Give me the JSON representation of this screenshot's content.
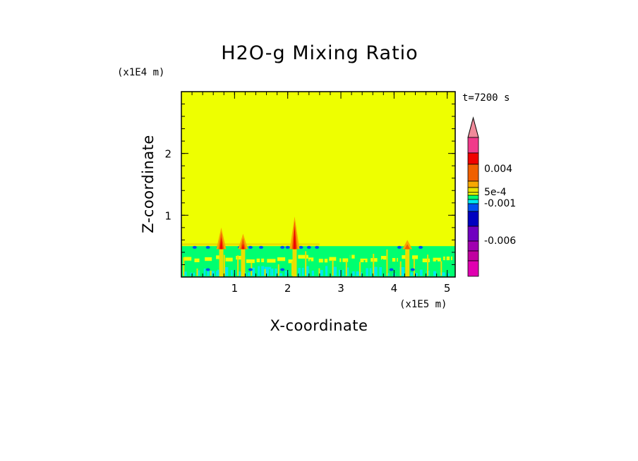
{
  "chart_data": {
    "type": "heatmap",
    "title": "H2O-g Mixing Ratio",
    "xlabel": "X-coordinate",
    "ylabel": "Z-coordinate",
    "x_scale_label": "(x1E5 m)",
    "y_scale_label": "(x1E4 m)",
    "time_label": "t=7200 s",
    "xlim": [
      0,
      5.15
    ],
    "ylim": [
      0,
      3.0
    ],
    "x_ticks": [
      "1",
      "2",
      "3",
      "4",
      "5"
    ],
    "y_ticks": [
      "1",
      "2"
    ],
    "background_level_color": "#eeff00",
    "colorbar": {
      "levels": [
        {
          "color": "#f03a8a"
        },
        {
          "color": "#f00000"
        },
        {
          "color": "#f06000"
        },
        {
          "color": "#f8a800"
        },
        {
          "color": "#e8e000"
        },
        {
          "color": "#eeff00"
        },
        {
          "color": "#00ff70"
        },
        {
          "color": "#00e8f0"
        },
        {
          "color": "#0050f0"
        },
        {
          "color": "#0000c0"
        },
        {
          "color": "#7000c0"
        },
        {
          "color": "#a000b0"
        },
        {
          "color": "#c000a0"
        },
        {
          "color": "#e000b0"
        }
      ],
      "top_triangle_color": "#f08a9a",
      "tick_labels": [
        "0.004",
        "5e-4",
        "-0.001",
        "-0.006"
      ]
    },
    "features": [
      {
        "kind": "plume",
        "x": 0.75,
        "top_z": 0.8
      },
      {
        "kind": "plume",
        "x": 1.16,
        "top_z": 0.7
      },
      {
        "kind": "plume",
        "x": 2.13,
        "top_z": 0.98
      },
      {
        "kind": "plume",
        "x": 4.25,
        "top_z": 0.6
      }
    ],
    "layer_top_z": 0.5
  }
}
